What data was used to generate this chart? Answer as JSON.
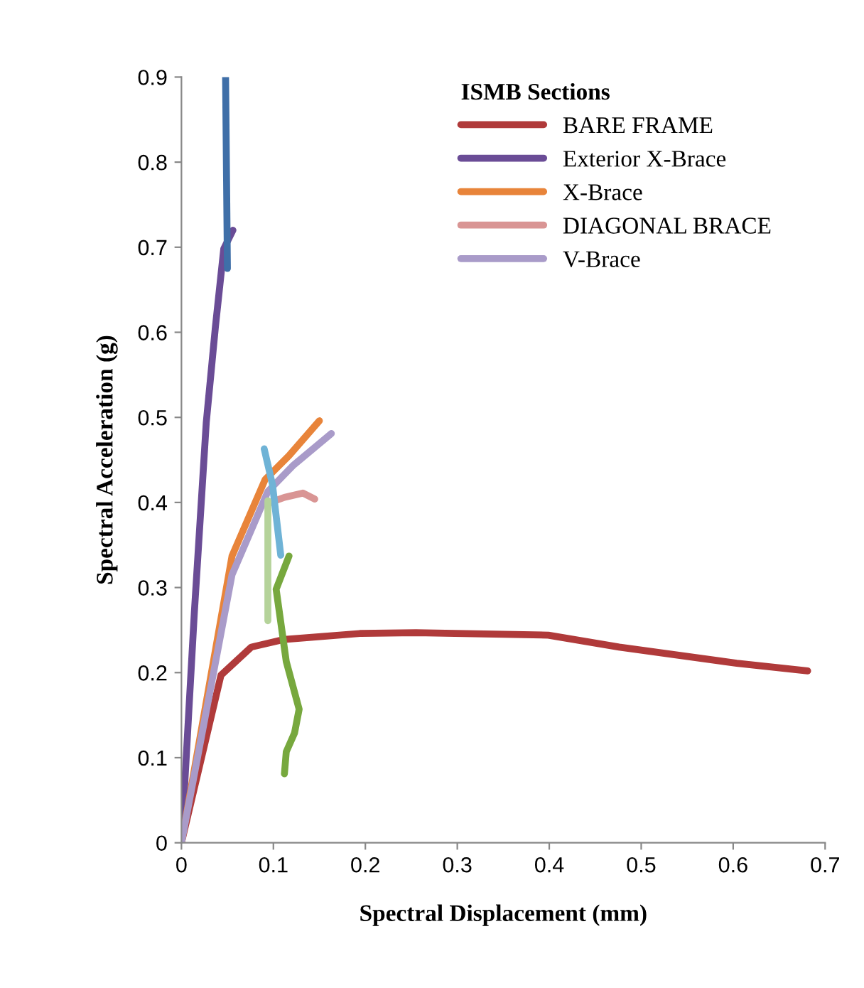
{
  "chart_data": {
    "type": "line",
    "xlabel": "Spectral Displacement (mm)",
    "ylabel": "Spectral Acceleration (g)",
    "legend_title": "ISMB Sections",
    "legend": "top right",
    "grid": false,
    "marker": "none",
    "xlim": [
      0,
      0.7
    ],
    "xticks": [
      0,
      0.1,
      0.2,
      0.3,
      0.4,
      0.5,
      0.6,
      0.7
    ],
    "ylim": [
      0,
      0.9
    ],
    "yticks": [
      0,
      0.1,
      0.2,
      0.3,
      0.4,
      0.5,
      0.6,
      0.7,
      0.8,
      0.9
    ],
    "series": [
      {
        "name": "BARE FRAME",
        "color": "#b03a3a",
        "x": [
          0,
          0.043,
          0.076,
          0.112,
          0.194,
          0.255,
          0.399,
          0.476,
          0.604,
          0.681
        ],
        "values": [
          0,
          0.197,
          0.23,
          0.239,
          0.246,
          0.247,
          0.244,
          0.23,
          0.211,
          0.202
        ]
      },
      {
        "name": "Exterior X-Brace",
        "color": "#6a4c96",
        "x": [
          0,
          0.014,
          0.027,
          0.037,
          0.046,
          0.056
        ],
        "values": [
          0,
          0.27,
          0.494,
          0.607,
          0.698,
          0.72
        ]
      },
      {
        "name": "X-Brace",
        "color": "#e8843a",
        "x": [
          0,
          0.055,
          0.091,
          0.117,
          0.15
        ],
        "values": [
          0,
          0.337,
          0.427,
          0.455,
          0.496
        ]
      },
      {
        "name": "DIAGONAL BRACE",
        "color": "#d99594",
        "x": [
          0.094,
          0.112,
          0.132,
          0.145
        ],
        "values": [
          0.399,
          0.406,
          0.411,
          0.404
        ]
      },
      {
        "name": "V-Brace",
        "color": "#a99bc9",
        "x": [
          0,
          0.055,
          0.094,
          0.122,
          0.163
        ],
        "values": [
          0,
          0.315,
          0.413,
          0.444,
          0.481
        ]
      },
      {
        "color": "#3f6fa8",
        "x": [
          0.048,
          0.05
        ],
        "values": [
          0.9,
          0.675
        ]
      },
      {
        "color": "#6fb3d6",
        "x": [
          0.09,
          0.099,
          0.108
        ],
        "values": [
          0.463,
          0.421,
          0.338
        ]
      },
      {
        "color": "#b5d39a",
        "x": [
          0.094,
          0.094
        ],
        "values": [
          0.402,
          0.261
        ]
      },
      {
        "color": "#77a83e",
        "x": [
          0.117,
          0.103,
          0.114,
          0.128,
          0.123,
          0.114,
          0.112
        ],
        "values": [
          0.337,
          0.298,
          0.213,
          0.157,
          0.129,
          0.107,
          0.081
        ]
      }
    ]
  }
}
